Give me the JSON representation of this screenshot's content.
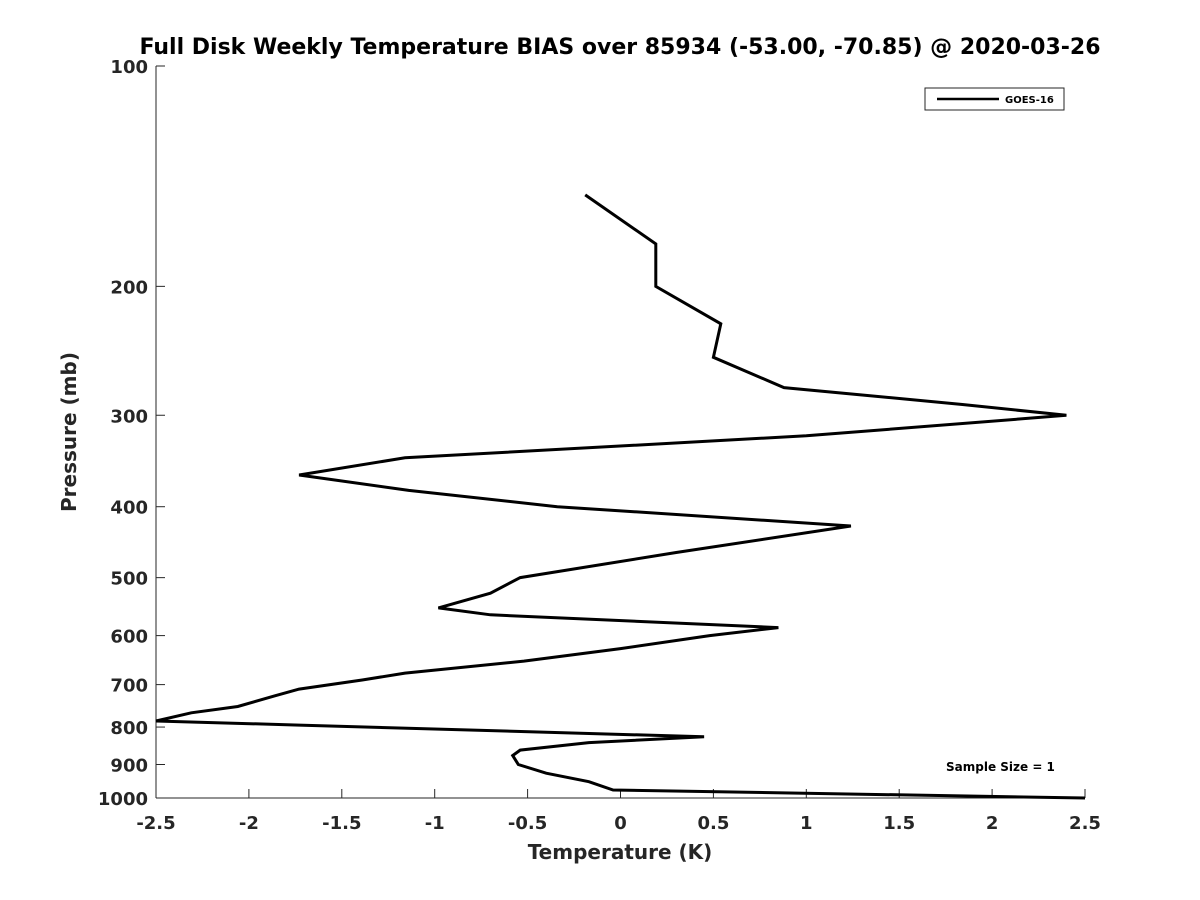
{
  "chart_data": {
    "type": "line",
    "title": "Full Disk Weekly Temperature BIAS over 85934 (-53.00, -70.85) @ 2020-03-26",
    "xlabel": "Temperature (K)",
    "ylabel": "Pressure (mb)",
    "xlim": [
      -2.5,
      2.5
    ],
    "ylim": [
      1000,
      100
    ],
    "y_scale": "log",
    "y_reversed": true,
    "grid": false,
    "legend_position": "top-right",
    "x_ticks": [
      "-2.5",
      "-2",
      "-1.5",
      "-1",
      "-0.5",
      "0",
      "0.5",
      "1",
      "1.5",
      "2",
      "2.5"
    ],
    "x_tick_values": [
      -2.5,
      -2,
      -1.5,
      -1,
      -0.5,
      0,
      0.5,
      1,
      1.5,
      2,
      2.5
    ],
    "y_ticks": [
      "100",
      "200",
      "300",
      "400",
      "500",
      "600",
      "700",
      "800",
      "900",
      "1000"
    ],
    "y_tick_values": [
      100,
      200,
      300,
      400,
      500,
      600,
      700,
      800,
      900,
      1000
    ],
    "series": [
      {
        "name": "GOES-16",
        "color": "#000000",
        "points": [
          {
            "t": -0.19,
            "p": 150
          },
          {
            "t": 0.19,
            "p": 175
          },
          {
            "t": 0.19,
            "p": 200
          },
          {
            "t": 0.54,
            "p": 225
          },
          {
            "t": 0.5,
            "p": 250
          },
          {
            "t": 0.88,
            "p": 275
          },
          {
            "t": 1.84,
            "p": 290
          },
          {
            "t": 2.4,
            "p": 300
          },
          {
            "t": 1.0,
            "p": 320
          },
          {
            "t": -1.16,
            "p": 343
          },
          {
            "t": -1.73,
            "p": 362
          },
          {
            "t": -1.14,
            "p": 380
          },
          {
            "t": -0.34,
            "p": 400
          },
          {
            "t": 1.24,
            "p": 425
          },
          {
            "t": 0.3,
            "p": 462
          },
          {
            "t": -0.54,
            "p": 500
          },
          {
            "t": -0.7,
            "p": 525
          },
          {
            "t": -0.98,
            "p": 550
          },
          {
            "t": -0.7,
            "p": 562
          },
          {
            "t": 0.85,
            "p": 585
          },
          {
            "t": 0.48,
            "p": 600
          },
          {
            "t": 0.0,
            "p": 625
          },
          {
            "t": -0.52,
            "p": 650
          },
          {
            "t": -1.16,
            "p": 675
          },
          {
            "t": -1.39,
            "p": 690
          },
          {
            "t": -1.73,
            "p": 710
          },
          {
            "t": -1.86,
            "p": 725
          },
          {
            "t": -2.06,
            "p": 750
          },
          {
            "t": -2.31,
            "p": 765
          },
          {
            "t": -2.5,
            "p": 785
          },
          {
            "t": -1.73,
            "p": 795
          },
          {
            "t": 0.45,
            "p": 825
          },
          {
            "t": -0.17,
            "p": 840
          },
          {
            "t": -0.54,
            "p": 860
          },
          {
            "t": -0.58,
            "p": 875
          },
          {
            "t": -0.55,
            "p": 900
          },
          {
            "t": -0.4,
            "p": 925
          },
          {
            "t": -0.17,
            "p": 950
          },
          {
            "t": -0.04,
            "p": 975
          },
          {
            "t": 2.5,
            "p": 1000
          }
        ]
      }
    ],
    "annotations": [
      "Sample Size = 1"
    ]
  }
}
